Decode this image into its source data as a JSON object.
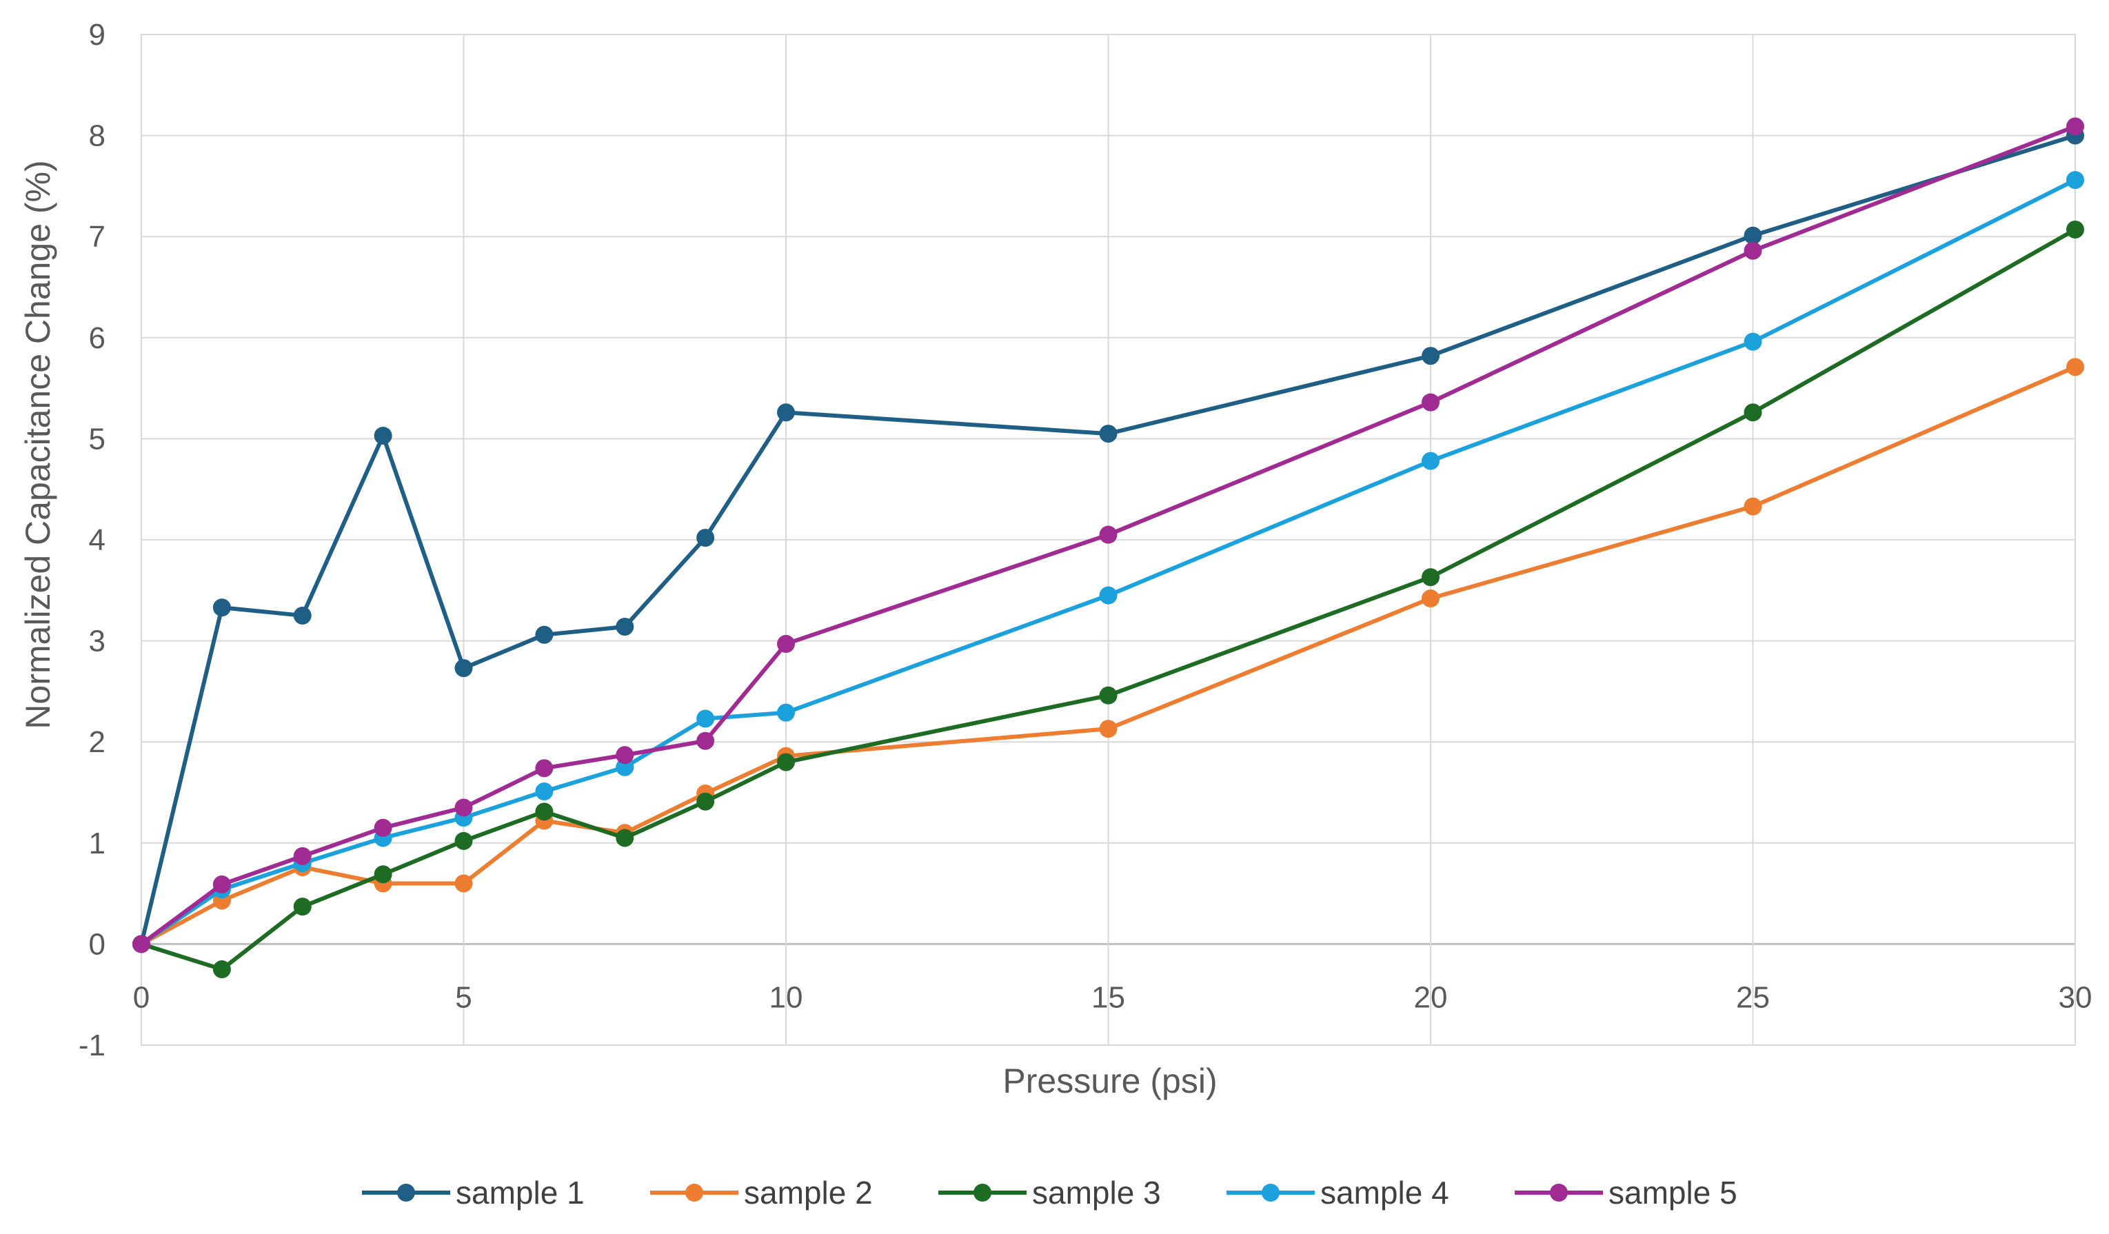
{
  "chart_data": {
    "type": "line",
    "title": "",
    "xlabel": "Pressure (psi)",
    "ylabel": "Normalized Capacitance Change (%)",
    "xlim": [
      0,
      30
    ],
    "ylim": [
      -1,
      9
    ],
    "xticks": [
      0,
      5,
      10,
      15,
      20,
      25,
      30
    ],
    "yticks": [
      -1,
      0,
      1,
      2,
      3,
      4,
      5,
      6,
      7,
      8,
      9
    ],
    "grid": true,
    "legend_position": "bottom",
    "x": [
      0,
      1.25,
      2.5,
      3.75,
      5,
      6.25,
      7.5,
      8.75,
      10,
      15,
      20,
      25,
      30
    ],
    "series": [
      {
        "name": "sample 1",
        "color": "#1f5f85",
        "values": [
          0,
          3.33,
          3.25,
          5.03,
          2.73,
          3.06,
          3.14,
          4.02,
          5.26,
          5.05,
          5.82,
          7.01,
          8.0
        ]
      },
      {
        "name": "sample 2",
        "color": "#ed7d31",
        "values": [
          0,
          0.43,
          0.76,
          0.6,
          0.6,
          1.22,
          1.1,
          1.49,
          1.86,
          2.13,
          3.42,
          4.33,
          5.71
        ]
      },
      {
        "name": "sample 3",
        "color": "#1e6b24",
        "values": [
          0,
          -0.25,
          0.37,
          0.69,
          1.02,
          1.31,
          1.05,
          1.41,
          1.8,
          2.46,
          3.63,
          5.26,
          7.07
        ]
      },
      {
        "name": "sample 4",
        "color": "#1ba1dc",
        "values": [
          0,
          0.54,
          0.8,
          1.05,
          1.25,
          1.51,
          1.75,
          2.23,
          2.29,
          3.45,
          4.78,
          5.96,
          7.56
        ]
      },
      {
        "name": "sample 5",
        "color": "#a02b93",
        "values": [
          0,
          0.59,
          0.87,
          1.15,
          1.35,
          1.74,
          1.87,
          2.01,
          2.97,
          4.05,
          5.36,
          6.86,
          8.09
        ]
      }
    ]
  }
}
